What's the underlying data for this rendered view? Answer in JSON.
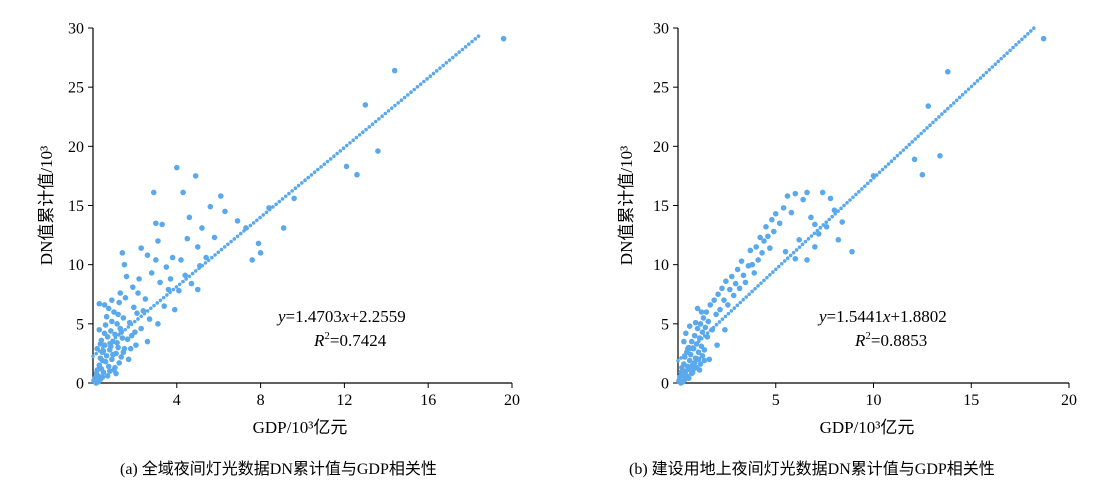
{
  "chart_data": [
    {
      "type": "scatter",
      "xlabel": "GDP/10³亿元",
      "ylabel": "DN值累计值/10³",
      "caption": "(a) 全域夜间灯光数据DN累计值与GDP相关性",
      "equation": {
        "prefix": "y",
        "body": "=1.4703",
        "var": "x",
        "tail": "+2.2559"
      },
      "r2": {
        "prefix": "R",
        "sup": "2",
        "body": "=0.7424"
      },
      "xlim": [
        0,
        20
      ],
      "ylim": [
        0,
        30
      ],
      "x_ticks": [
        4,
        8,
        12,
        16,
        20
      ],
      "y_ticks": [
        0,
        5,
        10,
        15,
        20,
        25,
        30
      ],
      "trendline": {
        "slope": 1.4703,
        "intercept": 2.2559,
        "x_range": [
          0,
          18.4
        ]
      },
      "points": [
        [
          0.05,
          0.2
        ],
        [
          0.1,
          0.4
        ],
        [
          0.15,
          0.8
        ],
        [
          0.2,
          1.1
        ],
        [
          0.25,
          0.6
        ],
        [
          0.3,
          1.5
        ],
        [
          0.35,
          2.1
        ],
        [
          0.4,
          1.2
        ],
        [
          0.45,
          2.6
        ],
        [
          0.5,
          0.9
        ],
        [
          0.55,
          3.2
        ],
        [
          0.6,
          1.8
        ],
        [
          0.65,
          2.3
        ],
        [
          0.7,
          3.9
        ],
        [
          0.75,
          1.4
        ],
        [
          0.8,
          2.8
        ],
        [
          0.85,
          4.4
        ],
        [
          0.9,
          2.0
        ],
        [
          0.95,
          3.5
        ],
        [
          1.0,
          1.1
        ],
        [
          1.05,
          4.1
        ],
        [
          1.1,
          2.5
        ],
        [
          1.15,
          5.0
        ],
        [
          1.2,
          3.0
        ],
        [
          1.25,
          1.7
        ],
        [
          1.3,
          4.6
        ],
        [
          1.35,
          2.2
        ],
        [
          1.4,
          3.8
        ],
        [
          1.45,
          5.5
        ],
        [
          1.5,
          2.9
        ],
        [
          0.3,
          4.5
        ],
        [
          0.4,
          3.6
        ],
        [
          0.5,
          2.7
        ],
        [
          0.6,
          4.9
        ],
        [
          0.7,
          0.6
        ],
        [
          0.8,
          1.0
        ],
        [
          0.9,
          5.2
        ],
        [
          1.0,
          6.0
        ],
        [
          1.1,
          0.8
        ],
        [
          1.2,
          5.8
        ],
        [
          0.2,
          2.9
        ],
        [
          0.35,
          3.3
        ],
        [
          0.45,
          1.9
        ],
        [
          0.55,
          4.2
        ],
        [
          0.65,
          5.6
        ],
        [
          0.75,
          6.3
        ],
        [
          0.85,
          3.1
        ],
        [
          0.95,
          2.4
        ],
        [
          1.05,
          1.3
        ],
        [
          1.15,
          3.4
        ],
        [
          1.25,
          6.8
        ],
        [
          1.35,
          4.3
        ],
        [
          1.45,
          2.6
        ],
        [
          1.55,
          7.2
        ],
        [
          1.65,
          3.7
        ],
        [
          1.75,
          5.1
        ],
        [
          1.85,
          4.0
        ],
        [
          1.95,
          6.4
        ],
        [
          2.05,
          3.2
        ],
        [
          2.15,
          7.6
        ],
        [
          0.3,
          6.7
        ],
        [
          0.55,
          6.6
        ],
        [
          0.9,
          7.0
        ],
        [
          1.3,
          7.6
        ],
        [
          1.7,
          2.0
        ],
        [
          1.9,
          8.1
        ],
        [
          2.1,
          5.9
        ],
        [
          2.3,
          4.6
        ],
        [
          2.5,
          7.1
        ],
        [
          2.7,
          5.4
        ],
        [
          1.5,
          10.0
        ],
        [
          1.4,
          11.0
        ],
        [
          1.6,
          9.0
        ],
        [
          2.3,
          11.4
        ],
        [
          2.6,
          10.8
        ],
        [
          3.0,
          10.4
        ],
        [
          2.2,
          8.8
        ],
        [
          2.8,
          9.3
        ],
        [
          3.2,
          8.5
        ],
        [
          3.6,
          7.9
        ],
        [
          2.9,
          16.1
        ],
        [
          3.0,
          13.5
        ],
        [
          3.3,
          13.4
        ],
        [
          3.1,
          12.0
        ],
        [
          3.5,
          9.8
        ],
        [
          3.8,
          10.6
        ],
        [
          4.0,
          18.2
        ],
        [
          4.3,
          16.1
        ],
        [
          4.5,
          12.2
        ],
        [
          4.9,
          17.5
        ],
        [
          4.6,
          14.0
        ],
        [
          5.0,
          11.5
        ],
        [
          5.2,
          13.1
        ],
        [
          5.6,
          14.9
        ],
        [
          5.8,
          12.3
        ],
        [
          6.1,
          15.8
        ],
        [
          6.3,
          14.5
        ],
        [
          6.9,
          13.7
        ],
        [
          7.3,
          13.1
        ],
        [
          7.6,
          10.4
        ],
        [
          7.9,
          11.8
        ],
        [
          8.0,
          11.0
        ],
        [
          8.4,
          14.8
        ],
        [
          9.1,
          13.1
        ],
        [
          9.6,
          15.6
        ],
        [
          3.4,
          6.5
        ],
        [
          3.9,
          6.2
        ],
        [
          4.1,
          7.8
        ],
        [
          4.4,
          9.1
        ],
        [
          4.7,
          8.4
        ],
        [
          5.1,
          9.9
        ],
        [
          5.4,
          10.6
        ],
        [
          5.0,
          7.9
        ],
        [
          4.2,
          10.4
        ],
        [
          3.7,
          8.8
        ],
        [
          2.4,
          6.1
        ],
        [
          2.0,
          4.3
        ],
        [
          1.8,
          2.9
        ],
        [
          2.6,
          3.5
        ],
        [
          3.1,
          5.0
        ],
        [
          12.1,
          18.3
        ],
        [
          12.6,
          17.6
        ],
        [
          13.0,
          23.5
        ],
        [
          13.6,
          19.6
        ],
        [
          14.4,
          26.4
        ],
        [
          19.6,
          29.1
        ],
        [
          0.15,
          0.0
        ],
        [
          0.25,
          0.1
        ],
        [
          0.35,
          0.3
        ],
        [
          0.45,
          0.5
        ]
      ]
    },
    {
      "type": "scatter",
      "xlabel": "GDP/10³亿元",
      "ylabel": "DN值累计值/10³",
      "caption": "(b) 建设用地上夜间灯光数据DN累计值与GDP相关性",
      "equation": {
        "prefix": "y",
        "body": "=1.5441",
        "var": "x",
        "tail": "+1.8802"
      },
      "r2": {
        "prefix": "R",
        "sup": "2",
        "body": "=0.8853"
      },
      "xlim": [
        0,
        20
      ],
      "ylim": [
        0,
        30
      ],
      "x_ticks": [
        5,
        10,
        15,
        20
      ],
      "y_ticks": [
        0,
        5,
        10,
        15,
        20,
        25,
        30
      ],
      "trendline": {
        "slope": 1.5441,
        "intercept": 1.8802,
        "x_range": [
          0,
          18.2
        ]
      },
      "points": [
        [
          0.05,
          0.2
        ],
        [
          0.1,
          0.5
        ],
        [
          0.15,
          0.9
        ],
        [
          0.2,
          1.3
        ],
        [
          0.25,
          0.7
        ],
        [
          0.3,
          1.6
        ],
        [
          0.35,
          2.2
        ],
        [
          0.4,
          1.0
        ],
        [
          0.45,
          2.6
        ],
        [
          0.5,
          1.4
        ],
        [
          0.55,
          3.0
        ],
        [
          0.6,
          1.9
        ],
        [
          0.65,
          2.4
        ],
        [
          0.7,
          3.5
        ],
        [
          0.75,
          1.5
        ],
        [
          0.8,
          2.9
        ],
        [
          0.85,
          4.0
        ],
        [
          0.9,
          2.1
        ],
        [
          0.95,
          3.3
        ],
        [
          1.0,
          4.6
        ],
        [
          1.05,
          2.6
        ],
        [
          1.1,
          3.8
        ],
        [
          1.15,
          5.0
        ],
        [
          1.2,
          3.1
        ],
        [
          1.25,
          4.3
        ],
        [
          1.3,
          5.5
        ],
        [
          1.35,
          2.8
        ],
        [
          1.4,
          4.7
        ],
        [
          1.45,
          6.0
        ],
        [
          1.5,
          3.9
        ],
        [
          0.3,
          3.5
        ],
        [
          0.4,
          4.2
        ],
        [
          0.5,
          2.9
        ],
        [
          0.6,
          4.8
        ],
        [
          0.7,
          0.8
        ],
        [
          0.8,
          1.2
        ],
        [
          0.9,
          5.1
        ],
        [
          1.0,
          6.3
        ],
        [
          1.1,
          1.1
        ],
        [
          1.2,
          6.0
        ],
        [
          1.55,
          5.2
        ],
        [
          1.65,
          6.6
        ],
        [
          1.75,
          4.5
        ],
        [
          1.85,
          7.0
        ],
        [
          1.95,
          5.8
        ],
        [
          2.05,
          7.5
        ],
        [
          2.15,
          6.2
        ],
        [
          2.25,
          8.0
        ],
        [
          2.35,
          7.0
        ],
        [
          2.45,
          8.6
        ],
        [
          2.55,
          6.6
        ],
        [
          2.65,
          7.9
        ],
        [
          2.75,
          9.0
        ],
        [
          2.85,
          7.4
        ],
        [
          2.95,
          8.4
        ],
        [
          3.05,
          9.6
        ],
        [
          3.15,
          8.0
        ],
        [
          3.25,
          10.3
        ],
        [
          3.35,
          9.1
        ],
        [
          3.45,
          8.5
        ],
        [
          3.6,
          9.9
        ],
        [
          3.7,
          11.2
        ],
        [
          3.8,
          10.0
        ],
        [
          3.9,
          9.3
        ],
        [
          4.0,
          11.5
        ],
        [
          4.1,
          10.4
        ],
        [
          4.2,
          12.3
        ],
        [
          4.3,
          11.0
        ],
        [
          4.4,
          12.0
        ],
        [
          4.5,
          13.2
        ],
        [
          4.6,
          12.4
        ],
        [
          4.7,
          11.4
        ],
        [
          4.8,
          13.8
        ],
        [
          4.9,
          12.8
        ],
        [
          5.0,
          14.3
        ],
        [
          5.2,
          13.5
        ],
        [
          5.4,
          14.8
        ],
        [
          5.6,
          15.8
        ],
        [
          5.8,
          14.4
        ],
        [
          6.0,
          16.0
        ],
        [
          6.2,
          12.1
        ],
        [
          6.4,
          15.5
        ],
        [
          6.6,
          16.1
        ],
        [
          6.8,
          14.0
        ],
        [
          7.0,
          13.4
        ],
        [
          7.2,
          12.6
        ],
        [
          7.4,
          16.1
        ],
        [
          7.6,
          13.2
        ],
        [
          7.8,
          15.6
        ],
        [
          8.0,
          14.6
        ],
        [
          8.2,
          12.1
        ],
        [
          8.4,
          13.6
        ],
        [
          8.9,
          11.1
        ],
        [
          6.0,
          10.5
        ],
        [
          6.6,
          10.4
        ],
        [
          5.5,
          11.1
        ],
        [
          7.0,
          11.5
        ],
        [
          1.6,
          2.0
        ],
        [
          2.0,
          3.2
        ],
        [
          2.4,
          4.5
        ],
        [
          10.0,
          17.5
        ],
        [
          12.1,
          18.9
        ],
        [
          12.5,
          17.6
        ],
        [
          12.8,
          23.4
        ],
        [
          13.4,
          19.2
        ],
        [
          13.8,
          26.3
        ],
        [
          18.7,
          29.1
        ],
        [
          0.15,
          0.0
        ],
        [
          0.25,
          0.1
        ],
        [
          0.35,
          0.3
        ],
        [
          0.45,
          0.6
        ],
        [
          0.55,
          0.4
        ],
        [
          0.65,
          1.1
        ],
        [
          0.75,
          0.9
        ],
        [
          0.85,
          1.7
        ],
        [
          0.95,
          1.3
        ],
        [
          1.05,
          2.0
        ],
        [
          1.15,
          1.6
        ],
        [
          1.25,
          2.3
        ],
        [
          1.35,
          1.9
        ]
      ]
    }
  ]
}
